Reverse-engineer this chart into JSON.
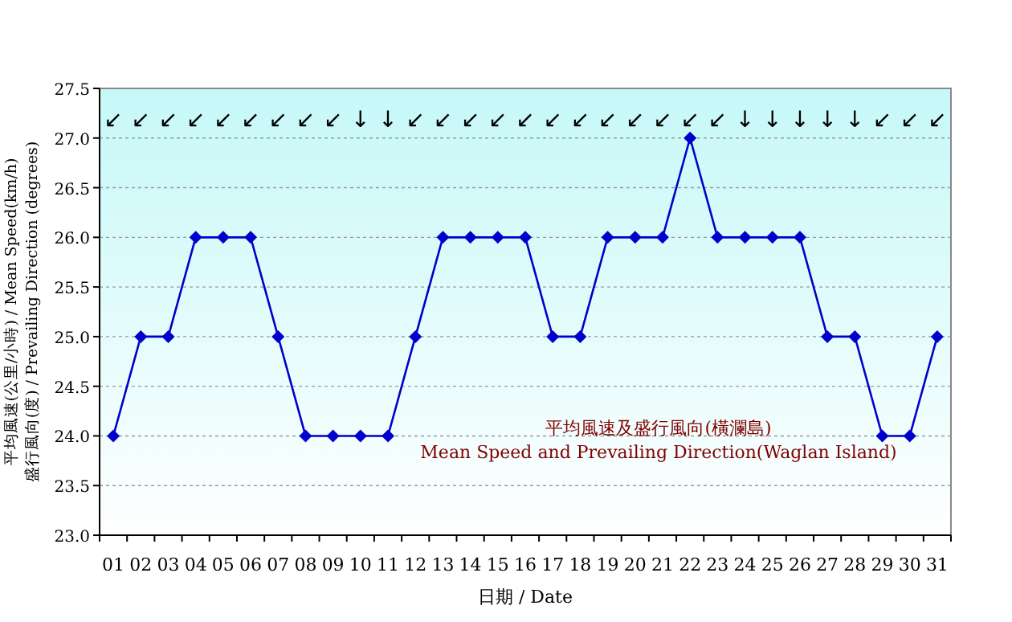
{
  "chart_data": {
    "type": "line",
    "title": "平均風速及盛行風向(橫瀾島)",
    "subtitle": "Mean Speed and Prevailing Direction(Waglan Island)",
    "xlabel": "日期 / Date",
    "ylabel": "平均風速(公里/小時) / Mean Speed(km/h)\n盛行風向(度) / Prevailing Direction (degrees)",
    "categories": [
      "01",
      "02",
      "03",
      "04",
      "05",
      "06",
      "07",
      "08",
      "09",
      "10",
      "11",
      "12",
      "13",
      "14",
      "15",
      "16",
      "17",
      "18",
      "19",
      "20",
      "21",
      "22",
      "23",
      "24",
      "25",
      "26",
      "27",
      "28",
      "29",
      "30",
      "31"
    ],
    "series": [
      {
        "color": "#0000cc",
        "values": [
          24,
          25,
          25,
          26,
          26,
          26,
          25,
          24,
          24,
          24,
          24,
          25,
          26,
          26,
          26,
          26,
          25,
          25,
          26,
          26,
          26,
          27,
          26,
          26,
          26,
          26,
          25,
          25,
          24,
          24,
          25
        ]
      }
    ],
    "ylim": [
      23,
      27.5
    ],
    "yticks": [
      {
        "value": 23,
        "label": "23.0"
      },
      {
        "value": 23.5,
        "label": "23.5"
      },
      {
        "value": 24,
        "label": "24.0"
      },
      {
        "value": 24.5,
        "label": "24.5"
      },
      {
        "value": 25,
        "label": "25.0"
      },
      {
        "value": 25.5,
        "label": "25.5"
      },
      {
        "value": 26,
        "label": "26.0"
      },
      {
        "value": 26.5,
        "label": "26.5"
      },
      {
        "value": 27,
        "label": "27.0"
      },
      {
        "value": 27.5,
        "label": "27.5"
      }
    ],
    "annotations": [
      "↙",
      "↙",
      "↙",
      "↙",
      "↙",
      "↙",
      "↙",
      "↙",
      "↙",
      "↓",
      "↓",
      "↙",
      "↙",
      "↙",
      "↙",
      "↙",
      "↙",
      "↙",
      "↙",
      "↙",
      "↙",
      "↙",
      "↙",
      "↓",
      "↓",
      "↓",
      "↓",
      "↓",
      "↙",
      "↙",
      "↙"
    ],
    "marker": "diamond",
    "line_style": "solid",
    "grid": "y"
  }
}
